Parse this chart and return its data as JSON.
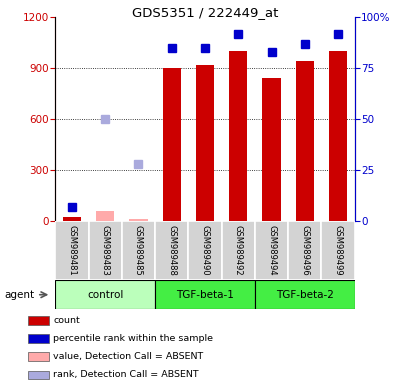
{
  "title": "GDS5351 / 222449_at",
  "samples": [
    "GSM989481",
    "GSM989483",
    "GSM989485",
    "GSM989488",
    "GSM989490",
    "GSM989492",
    "GSM989494",
    "GSM989496",
    "GSM989499"
  ],
  "groups": [
    {
      "label": "control",
      "indices": [
        0,
        1,
        2
      ],
      "color_light": "#ccffcc",
      "color_bright": "#66ee66"
    },
    {
      "label": "TGF-beta-1",
      "indices": [
        3,
        4,
        5
      ],
      "color_light": "#44ee44",
      "color_bright": "#44ee44"
    },
    {
      "label": "TGF-beta-2",
      "indices": [
        6,
        7,
        8
      ],
      "color_light": "#44ee44",
      "color_bright": "#44ee44"
    }
  ],
  "count_present": [
    20,
    null,
    null,
    900,
    920,
    1000,
    840,
    940,
    1000
  ],
  "count_absent": [
    null,
    60,
    10,
    null,
    null,
    null,
    null,
    null,
    null
  ],
  "rank_present": [
    7.0,
    null,
    null,
    85.0,
    85.0,
    92.0,
    83.0,
    87.0,
    92.0
  ],
  "rank_absent": [
    null,
    50.0,
    28.0,
    null,
    null,
    null,
    null,
    null,
    null
  ],
  "ylim_left": [
    0,
    1200
  ],
  "ylim_right": [
    0,
    100
  ],
  "yticks_left": [
    0,
    300,
    600,
    900,
    1200
  ],
  "yticks_right": [
    0,
    25,
    50,
    75,
    100
  ],
  "color_count": "#cc0000",
  "color_rank": "#0000cc",
  "color_count_absent": "#ffaaaa",
  "color_rank_absent": "#aaaadd",
  "bar_width": 0.55,
  "marker_size": 6
}
